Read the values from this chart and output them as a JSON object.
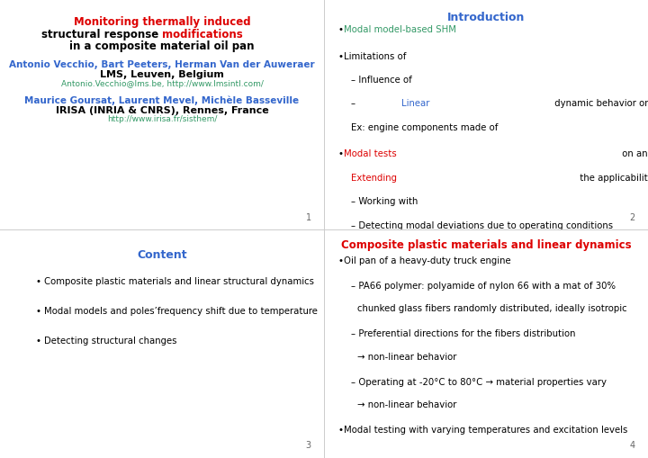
{
  "bg_color": "#ffffff",
  "divider_color": "#cccccc",
  "slide1": {
    "title_line1": {
      "text": "Monitoring thermally induced",
      "color": "#dd0000"
    },
    "title_line2_black": "structural response ",
    "title_line2_red": "modifications",
    "title_line3": "in a composite material oil pan",
    "authors1": {
      "text": "Antonio Vecchio, Bart Peeters, Herman Van der Auweraer",
      "color": "#3366cc"
    },
    "affil1": "LMS, Leuven, Belgium",
    "email1": {
      "text": "Antonio.Vecchio@lms.be, http://www.lmsintl.com/",
      "color": "#339966"
    },
    "authors2": {
      "text": "Maurice Goursat, Laurent Mevel, Michèle Basseville",
      "color": "#3366cc"
    },
    "affil2": "IRISA (INRIA & CNRS), Rennes, France",
    "url2": {
      "text": "http://www.irisa.fr/sisthem/",
      "color": "#339966"
    },
    "page": "1"
  },
  "slide2": {
    "title": {
      "text": "Introduction",
      "color": "#3366cc"
    },
    "page": "2"
  },
  "slide3": {
    "title": {
      "text": "Content",
      "color": "#3366cc"
    },
    "bullets": [
      "Composite plastic materials and linear structural dynamics",
      "Modal models and poles’frequency shift due to temperature",
      "Detecting structural changes"
    ],
    "page": "3"
  },
  "slide4": {
    "title": {
      "text": "Composite plastic materials and linear dynamics",
      "color": "#dd0000"
    },
    "page": "4"
  },
  "colors": {
    "black": "#000000",
    "red": "#dd0000",
    "blue": "#3366cc",
    "green": "#339966"
  }
}
